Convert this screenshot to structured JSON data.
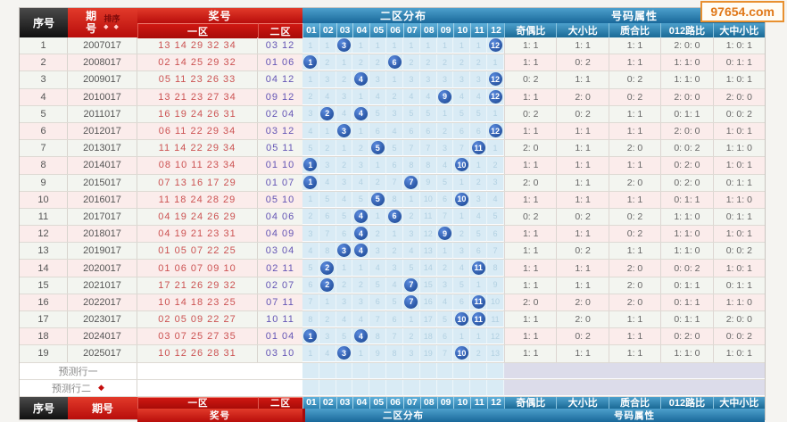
{
  "watermark": {
    "text": "97654.com"
  },
  "header": {
    "seq": "序号",
    "period": "期号",
    "sort_label": "排序",
    "sort_icons": "◆ ◆",
    "prize": "奖号",
    "zone1": "一区",
    "zone2": "二区",
    "zone2_dist": "二区分布",
    "grid_cols": [
      "01",
      "02",
      "03",
      "04",
      "05",
      "06",
      "07",
      "08",
      "09",
      "10",
      "11",
      "12"
    ],
    "attr_title": "号码属性",
    "attr_cols": [
      "奇偶比",
      "大小比",
      "质合比",
      "012路比",
      "大中小比"
    ]
  },
  "prediction": {
    "row1": "预测行一",
    "row2": "预测行二",
    "arrow": "◆"
  },
  "colors": {
    "header_red": "#c01010",
    "header_blue": "#2f80ad",
    "header_black": "#1f1f1f",
    "ball_blue": "#1e4fa0",
    "grid_bg": "#d9ebf5",
    "zone1_text": "#cc5252",
    "zone2_text": "#6455b5",
    "watermark_orange": "#e07818"
  },
  "rows": [
    {
      "seq": "1",
      "period": "2007017",
      "zone1": "13 14 29 32 34",
      "zone2": "03 12",
      "balls": [
        3,
        12
      ],
      "miss": [
        1,
        1,
        0,
        1,
        1,
        1,
        1,
        1,
        1,
        1,
        1,
        0
      ],
      "attrs": [
        "1: 1",
        "1: 1",
        "1: 1",
        "2: 0: 0",
        "1: 0: 1"
      ]
    },
    {
      "seq": "2",
      "period": "2008017",
      "zone1": "02 14 25 29 32",
      "zone2": "01 06",
      "balls": [
        1,
        6
      ],
      "miss": [
        0,
        2,
        1,
        2,
        2,
        0,
        2,
        2,
        2,
        2,
        2,
        1
      ],
      "attrs": [
        "1: 1",
        "0: 2",
        "1: 1",
        "1: 1: 0",
        "0: 1: 1"
      ]
    },
    {
      "seq": "3",
      "period": "2009017",
      "zone1": "05 11 23 26 33",
      "zone2": "04 12",
      "balls": [
        4,
        12
      ],
      "miss": [
        1,
        3,
        2,
        0,
        3,
        1,
        3,
        3,
        3,
        3,
        3,
        0
      ],
      "attrs": [
        "0: 2",
        "1: 1",
        "0: 2",
        "1: 1: 0",
        "1: 0: 1"
      ]
    },
    {
      "seq": "4",
      "period": "2010017",
      "zone1": "13 21 23 27 34",
      "zone2": "09 12",
      "balls": [
        9,
        12
      ],
      "miss": [
        2,
        4,
        3,
        1,
        4,
        2,
        4,
        4,
        0,
        4,
        4,
        0
      ],
      "attrs": [
        "1: 1",
        "2: 0",
        "0: 2",
        "2: 0: 0",
        "2: 0: 0"
      ]
    },
    {
      "seq": "5",
      "period": "2011017",
      "zone1": "16 19 24 26 31",
      "zone2": "02 04",
      "balls": [
        2,
        4
      ],
      "miss": [
        3,
        0,
        4,
        0,
        5,
        3,
        5,
        5,
        1,
        5,
        5,
        1
      ],
      "attrs": [
        "0: 2",
        "0: 2",
        "1: 1",
        "0: 1: 1",
        "0: 0: 2"
      ]
    },
    {
      "seq": "6",
      "period": "2012017",
      "zone1": "06 11 22 29 34",
      "zone2": "03 12",
      "balls": [
        3,
        12
      ],
      "miss": [
        4,
        1,
        0,
        1,
        6,
        4,
        6,
        6,
        2,
        6,
        6,
        0
      ],
      "attrs": [
        "1: 1",
        "1: 1",
        "1: 1",
        "2: 0: 0",
        "1: 0: 1"
      ]
    },
    {
      "seq": "7",
      "period": "2013017",
      "zone1": "11 14 22 29 34",
      "zone2": "05 11",
      "balls": [
        5,
        11
      ],
      "miss": [
        5,
        2,
        1,
        2,
        0,
        5,
        7,
        7,
        3,
        7,
        0,
        1
      ],
      "attrs": [
        "2: 0",
        "1: 1",
        "2: 0",
        "0: 0: 2",
        "1: 1: 0"
      ]
    },
    {
      "seq": "8",
      "period": "2014017",
      "zone1": "08 10 11 23 34",
      "zone2": "01 10",
      "balls": [
        1,
        10
      ],
      "miss": [
        0,
        3,
        2,
        3,
        1,
        6,
        8,
        8,
        4,
        0,
        1,
        2
      ],
      "attrs": [
        "1: 1",
        "1: 1",
        "1: 1",
        "0: 2: 0",
        "1: 0: 1"
      ]
    },
    {
      "seq": "9",
      "period": "2015017",
      "zone1": "07 13 16 17 29",
      "zone2": "01 07",
      "balls": [
        1,
        7
      ],
      "miss": [
        0,
        4,
        3,
        4,
        2,
        7,
        0,
        9,
        5,
        1,
        2,
        3
      ],
      "attrs": [
        "2: 0",
        "1: 1",
        "2: 0",
        "0: 2: 0",
        "0: 1: 1"
      ]
    },
    {
      "seq": "10",
      "period": "2016017",
      "zone1": "11 18 24 28 29",
      "zone2": "05 10",
      "balls": [
        5,
        10
      ],
      "miss": [
        1,
        5,
        4,
        5,
        0,
        8,
        1,
        10,
        6,
        0,
        3,
        4
      ],
      "attrs": [
        "1: 1",
        "1: 1",
        "1: 1",
        "0: 1: 1",
        "1: 1: 0"
      ]
    },
    {
      "seq": "11",
      "period": "2017017",
      "zone1": "04 19 24 26 29",
      "zone2": "04 06",
      "balls": [
        4,
        6
      ],
      "miss": [
        2,
        6,
        5,
        0,
        1,
        0,
        2,
        11,
        7,
        1,
        4,
        5
      ],
      "attrs": [
        "0: 2",
        "0: 2",
        "0: 2",
        "1: 1: 0",
        "0: 1: 1"
      ]
    },
    {
      "seq": "12",
      "period": "2018017",
      "zone1": "04 19 21 23 31",
      "zone2": "04 09",
      "balls": [
        4,
        9
      ],
      "miss": [
        3,
        7,
        6,
        0,
        2,
        1,
        3,
        12,
        0,
        2,
        5,
        6
      ],
      "attrs": [
        "1: 1",
        "1: 1",
        "0: 2",
        "1: 1: 0",
        "1: 0: 1"
      ]
    },
    {
      "seq": "13",
      "period": "2019017",
      "zone1": "01 05 07 22 25",
      "zone2": "03 04",
      "balls": [
        3,
        4
      ],
      "miss": [
        4,
        8,
        0,
        0,
        3,
        2,
        4,
        13,
        1,
        3,
        6,
        7
      ],
      "attrs": [
        "1: 1",
        "0: 2",
        "1: 1",
        "1: 1: 0",
        "0: 0: 2"
      ]
    },
    {
      "seq": "14",
      "period": "2020017",
      "zone1": "01 06 07 09 10",
      "zone2": "02 11",
      "balls": [
        2,
        11
      ],
      "miss": [
        5,
        0,
        1,
        1,
        4,
        3,
        5,
        14,
        2,
        4,
        0,
        8
      ],
      "attrs": [
        "1: 1",
        "1: 1",
        "2: 0",
        "0: 0: 2",
        "1: 0: 1"
      ]
    },
    {
      "seq": "15",
      "period": "2021017",
      "zone1": "17 21 26 29 32",
      "zone2": "02 07",
      "balls": [
        2,
        7
      ],
      "miss": [
        6,
        0,
        2,
        2,
        5,
        4,
        0,
        15,
        3,
        5,
        1,
        9
      ],
      "attrs": [
        "1: 1",
        "1: 1",
        "2: 0",
        "0: 1: 1",
        "0: 1: 1"
      ]
    },
    {
      "seq": "16",
      "period": "2022017",
      "zone1": "10 14 18 23 25",
      "zone2": "07 11",
      "balls": [
        7,
        11
      ],
      "miss": [
        7,
        1,
        3,
        3,
        6,
        5,
        0,
        16,
        4,
        6,
        0,
        10
      ],
      "attrs": [
        "2: 0",
        "2: 0",
        "2: 0",
        "0: 1: 1",
        "1: 1: 0"
      ]
    },
    {
      "seq": "17",
      "period": "2023017",
      "zone1": "02 05 09 22 27",
      "zone2": "10 11",
      "balls": [
        10,
        11
      ],
      "miss": [
        8,
        2,
        4,
        4,
        7,
        6,
        1,
        17,
        5,
        0,
        0,
        11
      ],
      "attrs": [
        "1: 1",
        "2: 0",
        "1: 1",
        "0: 1: 1",
        "2: 0: 0"
      ]
    },
    {
      "seq": "18",
      "period": "2024017",
      "zone1": "03 07 25 27 35",
      "zone2": "01 04",
      "balls": [
        1,
        4
      ],
      "miss": [
        0,
        3,
        5,
        0,
        8,
        7,
        2,
        18,
        6,
        1,
        1,
        12
      ],
      "attrs": [
        "1: 1",
        "0: 2",
        "1: 1",
        "0: 2: 0",
        "0: 0: 2"
      ]
    },
    {
      "seq": "19",
      "period": "2025017",
      "zone1": "10 12 26 28 31",
      "zone2": "03 10",
      "balls": [
        3,
        10
      ],
      "miss": [
        1,
        4,
        0,
        1,
        9,
        8,
        3,
        19,
        7,
        0,
        2,
        13
      ],
      "attrs": [
        "1: 1",
        "1: 1",
        "1: 1",
        "1: 1: 0",
        "1: 0: 1"
      ]
    }
  ]
}
